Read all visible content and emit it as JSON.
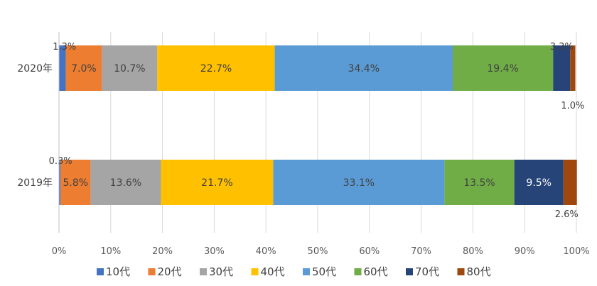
{
  "chart_data": {
    "type": "bar",
    "orientation": "horizontal",
    "stacked": true,
    "percent": true,
    "categories": [
      "2020年",
      "2019年"
    ],
    "series": [
      {
        "name": "10代",
        "color": "#4472C4",
        "values": [
          1.3,
          0.3
        ],
        "labels": [
          "1.3%",
          "0.3%"
        ]
      },
      {
        "name": "20代",
        "color": "#ED7D31",
        "values": [
          7.0,
          5.8
        ],
        "labels": [
          "7.0%",
          "5.8%"
        ]
      },
      {
        "name": "30代",
        "color": "#A5A5A5",
        "values": [
          10.7,
          13.6
        ],
        "labels": [
          "10.7%",
          "13.6%"
        ]
      },
      {
        "name": "40代",
        "color": "#FFC000",
        "values": [
          22.7,
          21.7
        ],
        "labels": [
          "22.7%",
          "21.7%"
        ]
      },
      {
        "name": "50代",
        "color": "#5B9BD5",
        "values": [
          34.4,
          33.1
        ],
        "labels": [
          "34.4%",
          "33.1%"
        ]
      },
      {
        "name": "60代",
        "color": "#70AD47",
        "values": [
          19.4,
          13.5
        ],
        "labels": [
          "19.4%",
          "13.5%"
        ]
      },
      {
        "name": "70代",
        "color": "#264478",
        "values": [
          3.3,
          9.5
        ],
        "labels": [
          "3.3%",
          "9.5%"
        ]
      },
      {
        "name": "80代",
        "color": "#9E480E",
        "values": [
          1.0,
          2.6
        ],
        "labels": [
          "1.0%",
          "2.6%"
        ]
      }
    ],
    "xlim": [
      0,
      100
    ],
    "xticks": [
      0,
      10,
      20,
      30,
      40,
      50,
      60,
      70,
      80,
      90,
      100
    ],
    "xtick_labels": [
      "0%",
      "10%",
      "20%",
      "30%",
      "40%",
      "50%",
      "60%",
      "70%",
      "80%",
      "90%",
      "100%"
    ],
    "grid": true,
    "legend_position": "bottom",
    "title": "",
    "xlabel": "",
    "ylabel": ""
  }
}
